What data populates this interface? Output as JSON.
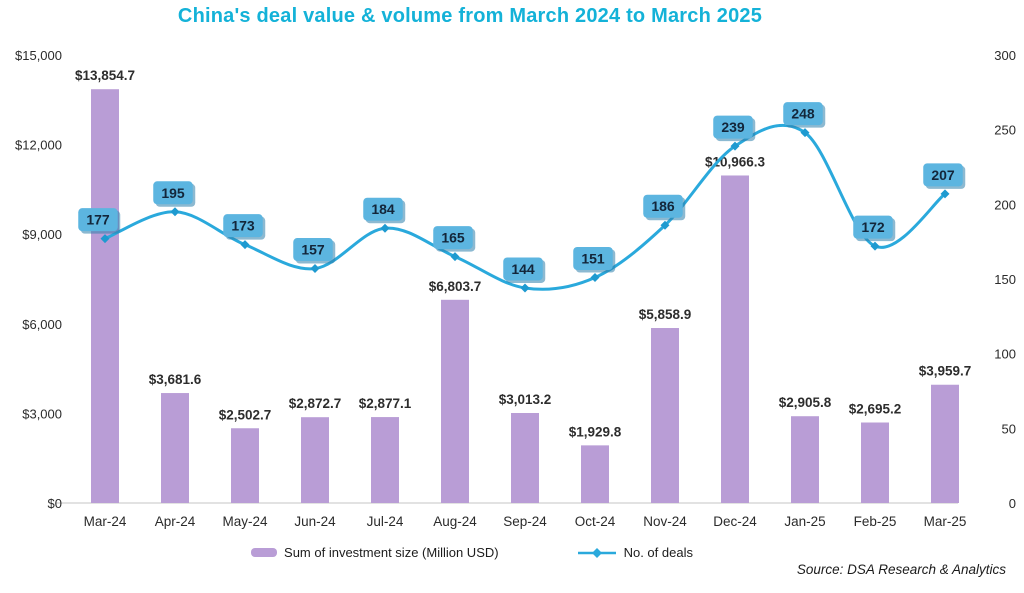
{
  "chart": {
    "title": "China's deal value & volume from March 2024 to March 2025",
    "legend": {
      "bars": "Sum of investment size (Million USD)",
      "line": "No. of deals"
    },
    "source": "Source: DSA Research & Analytics"
  },
  "chart_data": {
    "type": "bar+line combo",
    "title": "China's deal value & volume from March 2024 to March 2025",
    "categories": [
      "Mar-24",
      "Apr-24",
      "May-24",
      "Jun-24",
      "Jul-24",
      "Aug-24",
      "Sep-24",
      "Oct-24",
      "Nov-24",
      "Dec-24",
      "Jan-25",
      "Feb-25",
      "Mar-25"
    ],
    "series": [
      {
        "name": "Sum of investment size (Million USD)",
        "type": "bar",
        "axis": "left",
        "values": [
          13854.7,
          3681.6,
          2502.7,
          2872.7,
          2877.1,
          6803.7,
          3013.2,
          1929.8,
          5858.9,
          10966.3,
          2905.8,
          2695.2,
          3959.7
        ],
        "labels": [
          "$13,854.7",
          "$3,681.6",
          "$2,502.7",
          "$2,872.7",
          "$2,877.1",
          "$6,803.7",
          "$3,013.2",
          "$1,929.8",
          "$5,858.9",
          "$10,966.3",
          "$2,905.8",
          "$2,695.2",
          "$3,959.7"
        ]
      },
      {
        "name": "No. of deals",
        "type": "line",
        "axis": "right",
        "values": [
          177,
          195,
          173,
          157,
          184,
          165,
          144,
          151,
          186,
          239,
          248,
          172,
          207
        ],
        "labels": [
          "177",
          "195",
          "173",
          "157",
          "184",
          "165",
          "144",
          "151",
          "186",
          "239",
          "248",
          "172",
          "207"
        ]
      }
    ],
    "left_axis": {
      "range": [
        0,
        15000
      ],
      "tick_values": [
        15000,
        12000,
        9000,
        6000,
        3000,
        0
      ],
      "tick_labels": [
        "$15,000",
        "$12,000",
        "$9,000",
        "$6,000",
        "$3,000",
        "$0"
      ]
    },
    "right_axis": {
      "range": [
        0,
        300
      ],
      "tick_values": [
        300,
        250,
        200,
        150,
        100,
        50,
        0
      ],
      "tick_labels": [
        "300",
        "250",
        "200",
        "150",
        "100",
        "50",
        "0"
      ]
    },
    "grid": "off",
    "legend_position": "bottom",
    "colors": {
      "title": "#14b2d8",
      "bar": "#b99dd6",
      "line": "#2aa9dc",
      "marker": "#1e9ad0",
      "badge_fill": "#5cb5e0",
      "badge_shadow": "#2e80ab",
      "badge_text": "#13263a",
      "axis_text": "#2b2b2b",
      "bar_label_text": "#2d2d2d",
      "baseline": "#d8d8d8"
    }
  }
}
